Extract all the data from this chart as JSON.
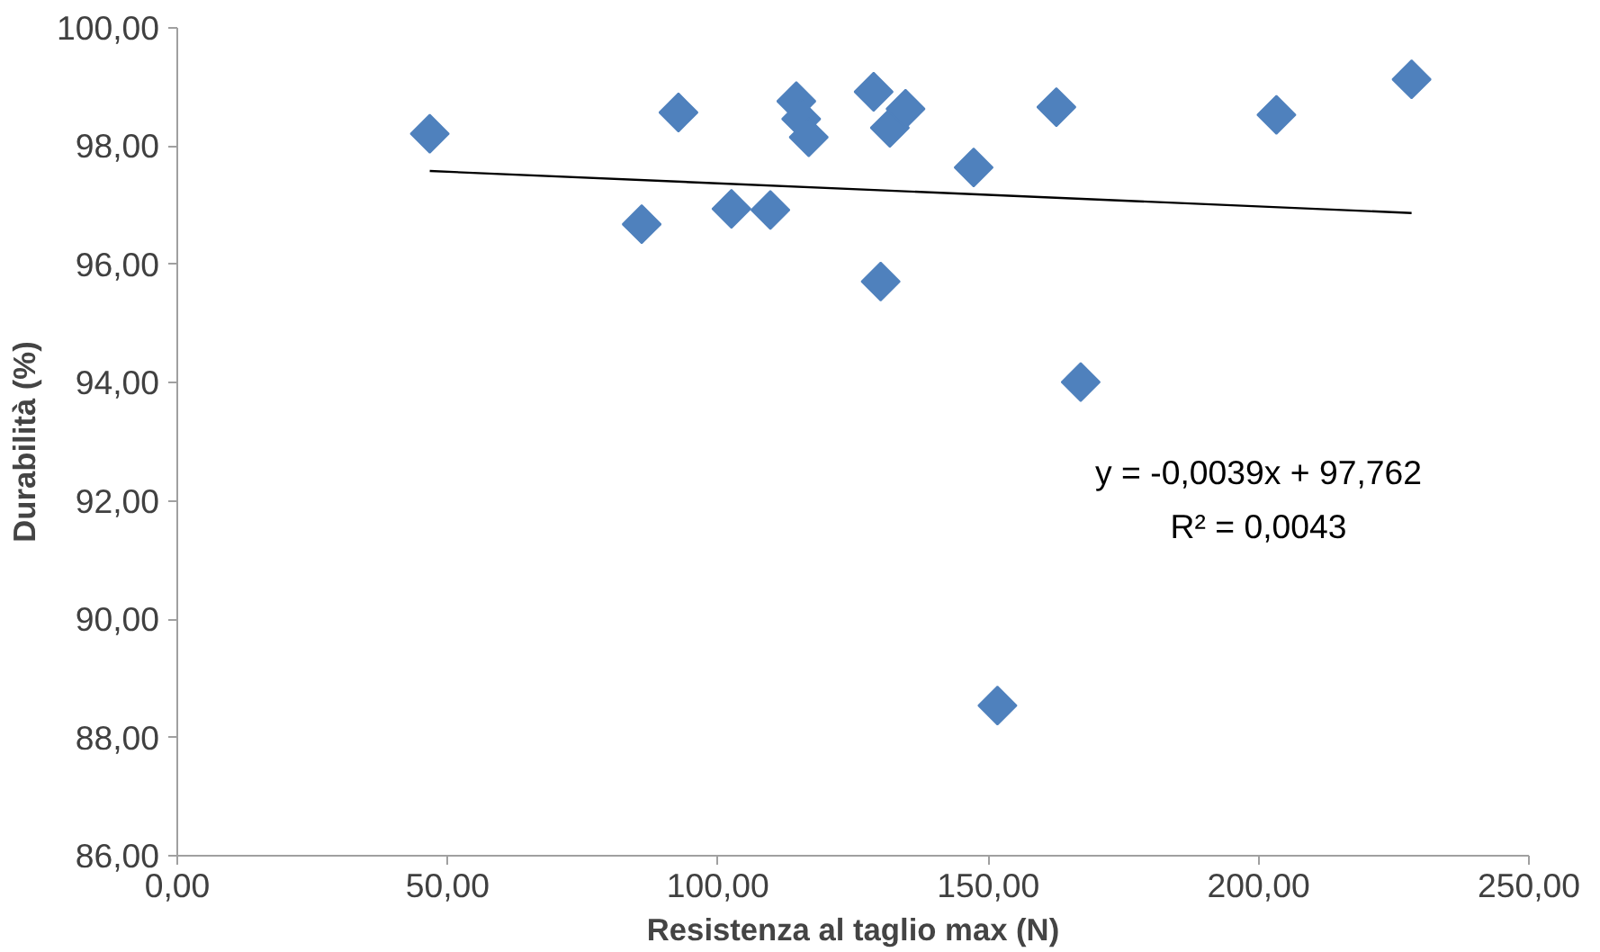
{
  "chart_data": {
    "type": "scatter",
    "xlabel": "Resistenza al taglio max (N)",
    "ylabel": "Durabilità (%)",
    "xlim": [
      0,
      250
    ],
    "ylim": [
      86,
      100
    ],
    "xticks": [
      {
        "value": 0,
        "label": "0,00"
      },
      {
        "value": 50,
        "label": "50,00"
      },
      {
        "value": 100,
        "label": "100,00"
      },
      {
        "value": 150,
        "label": "150,00"
      },
      {
        "value": 200,
        "label": "200,00"
      },
      {
        "value": 250,
        "label": "250,00"
      }
    ],
    "yticks": [
      {
        "value": 86,
        "label": "86,00"
      },
      {
        "value": 88,
        "label": "88,00"
      },
      {
        "value": 90,
        "label": "90,00"
      },
      {
        "value": 92,
        "label": "92,00"
      },
      {
        "value": 94,
        "label": "94,00"
      },
      {
        "value": 96,
        "label": "96,00"
      },
      {
        "value": 98,
        "label": "98,00"
      },
      {
        "value": 100,
        "label": "100,00"
      }
    ],
    "grid": false,
    "series": [
      {
        "marker": "diamond",
        "color": "#4f81bd",
        "x": [
          46.7,
          92.7,
          85.9,
          102.5,
          109.7,
          114.5,
          115.4,
          116.8,
          128.8,
          131.8,
          134.7,
          130.1,
          147.3,
          162.6,
          167.1,
          151.7,
          203.3,
          228.3
        ],
        "values": [
          98.21,
          98.57,
          96.68,
          96.94,
          96.92,
          98.76,
          98.46,
          98.15,
          98.92,
          98.31,
          98.63,
          95.71,
          97.64,
          98.66,
          94.01,
          88.54,
          98.53,
          99.13
        ]
      },
      {
        "type": "line",
        "color": "#000000",
        "x": [
          46.7,
          228.3
        ],
        "values": [
          97.58,
          96.87
        ]
      }
    ],
    "annotations": [
      "y = -0,0039x + 97,762",
      "R² = 0,0043"
    ]
  }
}
